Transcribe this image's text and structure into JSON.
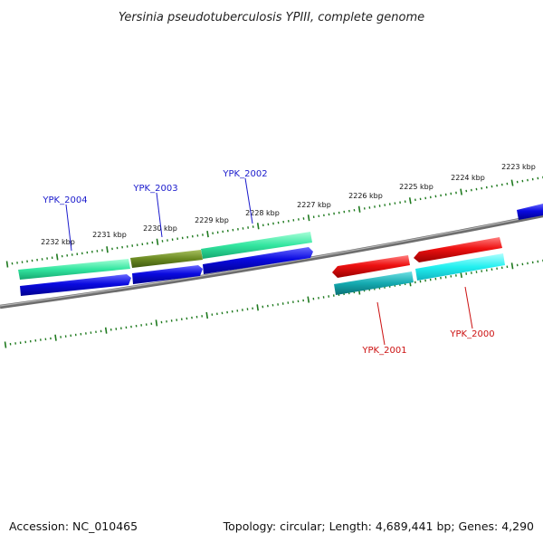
{
  "title": "Yersinia pseudotuberculosis YPIII, complete genome",
  "footer": {
    "accession": "Accession: NC_010465",
    "summary": "Topology: circular; Length: 4,689,441 bp; Genes: 4,290"
  },
  "colors": {
    "tick": "#1f7a1f",
    "backbone": "#888888",
    "forward_label": "#1a1acc",
    "reverse_label": "#cc1111",
    "forward_cds": "#0a0ae0",
    "forward_gene_mint": "#33e6a0",
    "forward_gene_olive": "#6b8a22",
    "reverse_cds": "#ee1111",
    "reverse_gene_teal": "#14aab0",
    "reverse_gene_cyan": "#22f0f0"
  },
  "scale": {
    "unit": "kbp",
    "labels": [
      "2223 kbp",
      "2224 kbp",
      "2225 kbp",
      "2226 kbp",
      "2227 kbp",
      "2228 kbp",
      "2229 kbp",
      "2230 kbp",
      "2231 kbp",
      "2232 kbp"
    ]
  },
  "genes": [
    {
      "name": "YPK_2004",
      "strand": "forward",
      "label_color": "#1a1acc"
    },
    {
      "name": "YPK_2003",
      "strand": "forward",
      "label_color": "#1a1acc"
    },
    {
      "name": "YPK_2002",
      "strand": "forward",
      "label_color": "#1a1acc"
    },
    {
      "name": "YPK_2001",
      "strand": "reverse",
      "label_color": "#cc1111"
    },
    {
      "name": "YPK_2000",
      "strand": "reverse",
      "label_color": "#cc1111"
    }
  ]
}
